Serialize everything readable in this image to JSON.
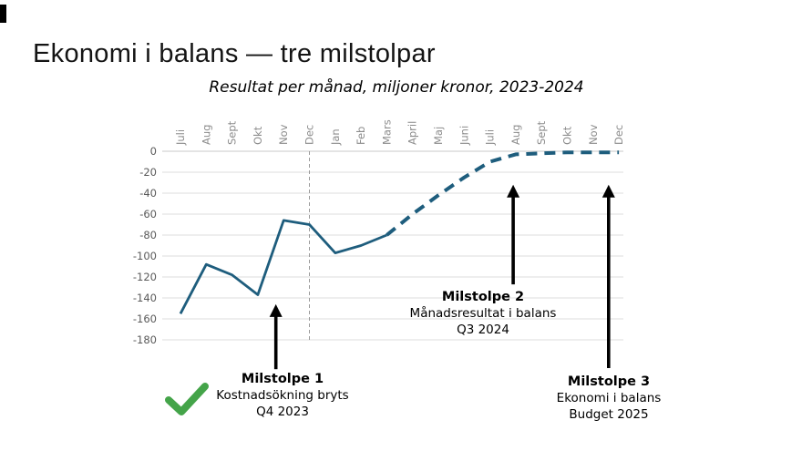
{
  "slide": {
    "title": "Ekonomi i balans — tre milstolpar",
    "subtitle": "Resultat per månad, miljoner kronor, 2023-2024"
  },
  "colors": {
    "line": "#1E5D7D",
    "grid": "#DCDCDC",
    "zero_line": "#C8C8C8",
    "y_label": "#595959",
    "month_label": "#8C8C8C",
    "divider": "#9A9A9A",
    "arrow": "#000000",
    "check": "#44A449",
    "title_text": "#141414"
  },
  "chart_data": {
    "type": "line",
    "title": "Resultat per månad, miljoner kronor, 2023-2024",
    "categories": [
      "Juli",
      "Aug",
      "Sept",
      "Okt",
      "Nov",
      "Dec",
      "Jan",
      "Feb",
      "Mars",
      "April",
      "Maj",
      "Juni",
      "Juli",
      "Aug",
      "Sept",
      "Okt",
      "Nov",
      "Dec"
    ],
    "ylim": [
      -180,
      0
    ],
    "ytick_step": 20,
    "y_ticks": [
      0,
      -20,
      -40,
      -60,
      -80,
      -100,
      -120,
      -140,
      -160,
      -180
    ],
    "grid": true,
    "series": [
      {
        "style": "solid",
        "start_index": 0,
        "values": [
          -155,
          -108,
          -118,
          -137,
          -66,
          -70,
          -97,
          -90,
          -80
        ]
      },
      {
        "style": "dashed",
        "start_index": 8,
        "values": [
          -80,
          -60,
          -42,
          -25,
          -10,
          -3,
          -2,
          -1,
          -1,
          -1
        ]
      }
    ],
    "divider_month_index": 5,
    "annotations": {
      "arrows": [
        {
          "x_month_index": 3.7,
          "tip_value": -146,
          "base_value": -208
        },
        {
          "x_month_index": 12.9,
          "tip_value": -32,
          "base_value": -127
        },
        {
          "x_month_index": 16.6,
          "tip_value": -32,
          "base_value": -207
        }
      ]
    }
  },
  "milestones": [
    {
      "title": "Milstolpe 1",
      "line1": "Kostnadsökning bryts",
      "line2": "Q4 2023",
      "checked": true
    },
    {
      "title": "Milstolpe 2",
      "line1": "Månadsresultat i balans",
      "line2": "Q3 2024",
      "checked": false
    },
    {
      "title": "Milstolpe 3",
      "line1": "Ekonomi i balans",
      "line2": "Budget 2025",
      "checked": false
    }
  ]
}
